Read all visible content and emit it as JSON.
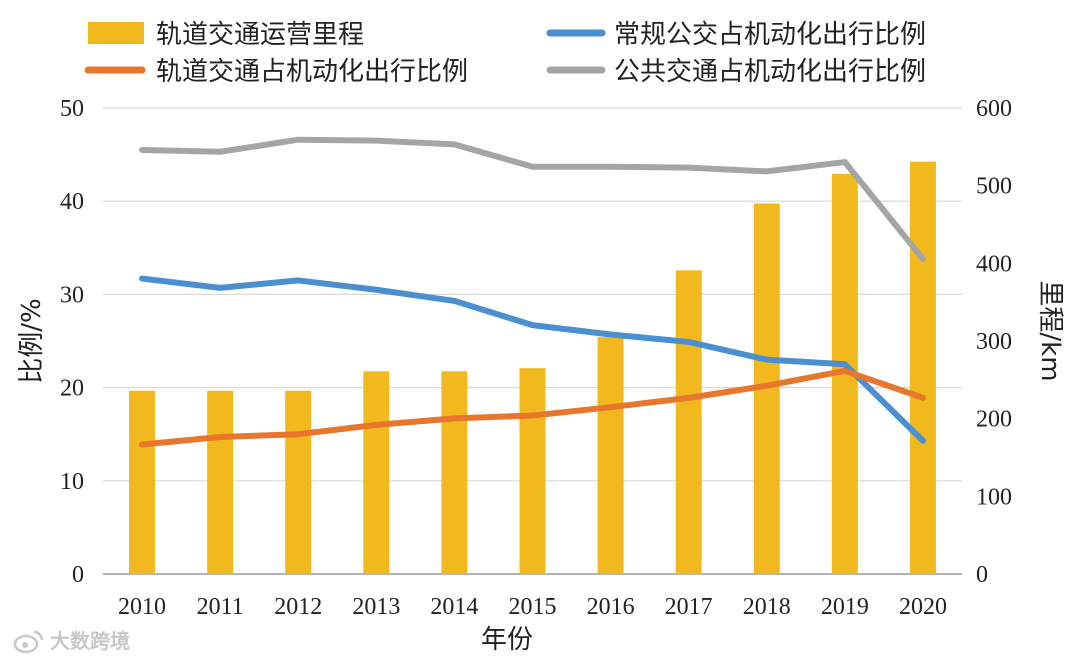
{
  "chart_data": {
    "type": "bar+line",
    "x": [
      "2010",
      "2011",
      "2012",
      "2013",
      "2014",
      "2015",
      "2016",
      "2017",
      "2018",
      "2019",
      "2020"
    ],
    "xlabel": "年份",
    "ylabel_left": "比例/%",
    "ylabel_right": "里程/km",
    "ylim_left": [
      0,
      50
    ],
    "ylim_right": [
      0,
      600
    ],
    "yticks_left": [
      "0",
      "10",
      "20",
      "30",
      "40",
      "50"
    ],
    "yticks_right": [
      "0",
      "100",
      "200",
      "300",
      "400",
      "500",
      "600"
    ],
    "grid": true,
    "legend_position": "top",
    "bars": {
      "name": "轨道交通运营里程",
      "axis": "right",
      "color": "#f2b91e",
      "values": [
        236,
        236,
        236,
        261,
        261,
        265,
        305,
        391,
        477,
        515,
        531
      ]
    },
    "series": [
      {
        "name": "常规公交占机动化出行比例",
        "axis": "left",
        "color": "#4a90d0",
        "values": [
          31.7,
          30.7,
          31.5,
          30.5,
          29.3,
          26.7,
          25.7,
          24.9,
          23.0,
          22.5,
          14.3
        ]
      },
      {
        "name": "轨道交通占机动化出行比例",
        "axis": "left",
        "color": "#e8762d",
        "values": [
          13.9,
          14.7,
          15.0,
          16.0,
          16.7,
          17.0,
          17.9,
          18.9,
          20.2,
          21.8,
          18.9
        ]
      },
      {
        "name": "公共交通占机动化出行比例",
        "axis": "left",
        "color": "#a5a5a5",
        "values": [
          45.5,
          45.3,
          46.6,
          46.5,
          46.1,
          43.7,
          43.7,
          43.6,
          43.2,
          44.2,
          33.8
        ]
      }
    ]
  },
  "watermark": {
    "text": "大数跨境",
    "icon": "weibo-icon"
  }
}
